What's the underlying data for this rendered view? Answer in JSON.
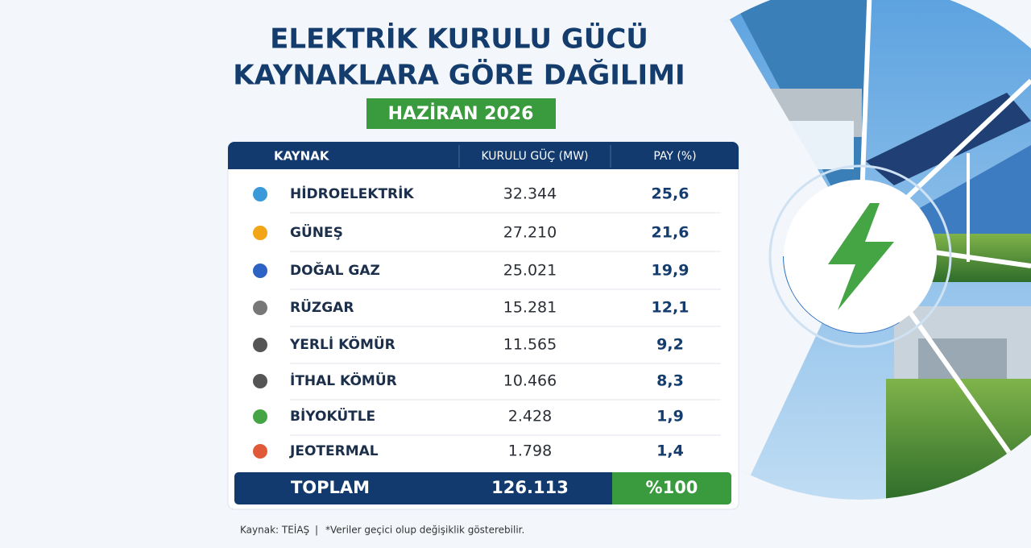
{
  "header": {
    "title_lines": [
      "ELEKTRİK KURULU GÜCÜ",
      "KAYNAKLARA GÖRE DAĞILIMI"
    ],
    "badge": "HAZİRAN 2026"
  },
  "table": {
    "columns": [
      "KAYNAK",
      "KURULU GÜÇ (MW)",
      "PAY (%)"
    ],
    "rows": [
      [
        "HİDROELEKTRİK",
        "32.344",
        "25,6"
      ],
      [
        "GÜNEŞ",
        "27.210",
        "21,6"
      ],
      [
        "DOĞAL GAZ",
        "25.021",
        "19,9"
      ],
      [
        "RÜZGAR",
        "15.281",
        "12,1"
      ],
      [
        "YERLİ KÖMÜR",
        "11.565",
        "9,2"
      ],
      [
        "İTHAL KÖMÜR",
        "10.466",
        "8,3"
      ],
      [
        "BİYOKÜTLE",
        "2.428",
        "1,9"
      ],
      [
        "JEOTERMAL",
        "1.798",
        "1,4"
      ]
    ],
    "total": [
      "TOPLAM",
      "126.113",
      "%100"
    ]
  },
  "footer": {
    "source": "Kaynak: TEİAŞ",
    "separator": "|",
    "note": "*Veriler geçici olup değişiklik gösterebilir."
  }
}
